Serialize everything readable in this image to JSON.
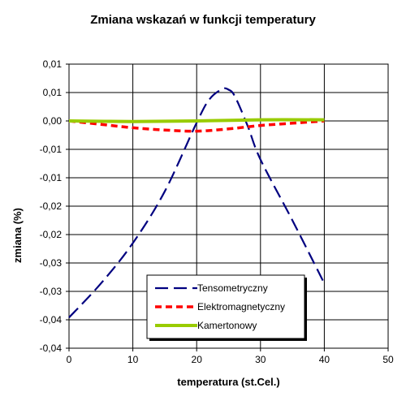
{
  "chart_data": {
    "type": "line",
    "title": "Zmiana  wskazań w funkcji temperatury",
    "xlabel": "temperatura (st.Cel.)",
    "ylabel": "zmiana (%)",
    "xlim": [
      0,
      50
    ],
    "ylim": [
      -0.04,
      0.01
    ],
    "x_ticks": [
      0,
      10,
      20,
      30,
      40,
      50
    ],
    "x_tick_labels": [
      "0",
      "10",
      "20",
      "30",
      "40",
      "50"
    ],
    "y_ticks": [
      0.01,
      0.005,
      0,
      -0.005,
      -0.01,
      -0.015,
      -0.02,
      -0.025,
      -0.03,
      -0.035,
      -0.04
    ],
    "y_tick_labels": [
      "0,01",
      "0,01",
      "0,00",
      "-0,01",
      "-0,01",
      "-0,02",
      "-0,02",
      "-0,03",
      "-0,03",
      "-0,04",
      "-0,04"
    ],
    "grid": true,
    "legend_position": "bottom-center",
    "series": [
      {
        "name": "Tensometryczny",
        "color": "#000080",
        "dash": "long-dash",
        "x": [
          0,
          5,
          10,
          15,
          20,
          22,
          24,
          25,
          26,
          28,
          30,
          35,
          40
        ],
        "y": [
          -0.0346,
          -0.0286,
          -0.0215,
          -0.0124,
          -0.0003,
          0.0038,
          0.0056,
          0.0055,
          0.0043,
          -0.0009,
          -0.0068,
          -0.0175,
          -0.0286
        ]
      },
      {
        "name": "Elektromagnetyczny",
        "color": "#ff0000",
        "dash": "short-dash",
        "x": [
          0,
          5,
          10,
          15,
          20,
          25,
          30,
          35,
          40
        ],
        "y": [
          0,
          -0.0006,
          -0.0012,
          -0.0016,
          -0.0018,
          -0.0014,
          -0.0008,
          -0.0004,
          0
        ]
      },
      {
        "name": "Kamertonowy",
        "color": "#99cc00",
        "dash": "solid",
        "x": [
          0,
          10,
          20,
          30,
          40
        ],
        "y": [
          0,
          -0.0001,
          0,
          0.0002,
          0.0002
        ]
      }
    ]
  }
}
